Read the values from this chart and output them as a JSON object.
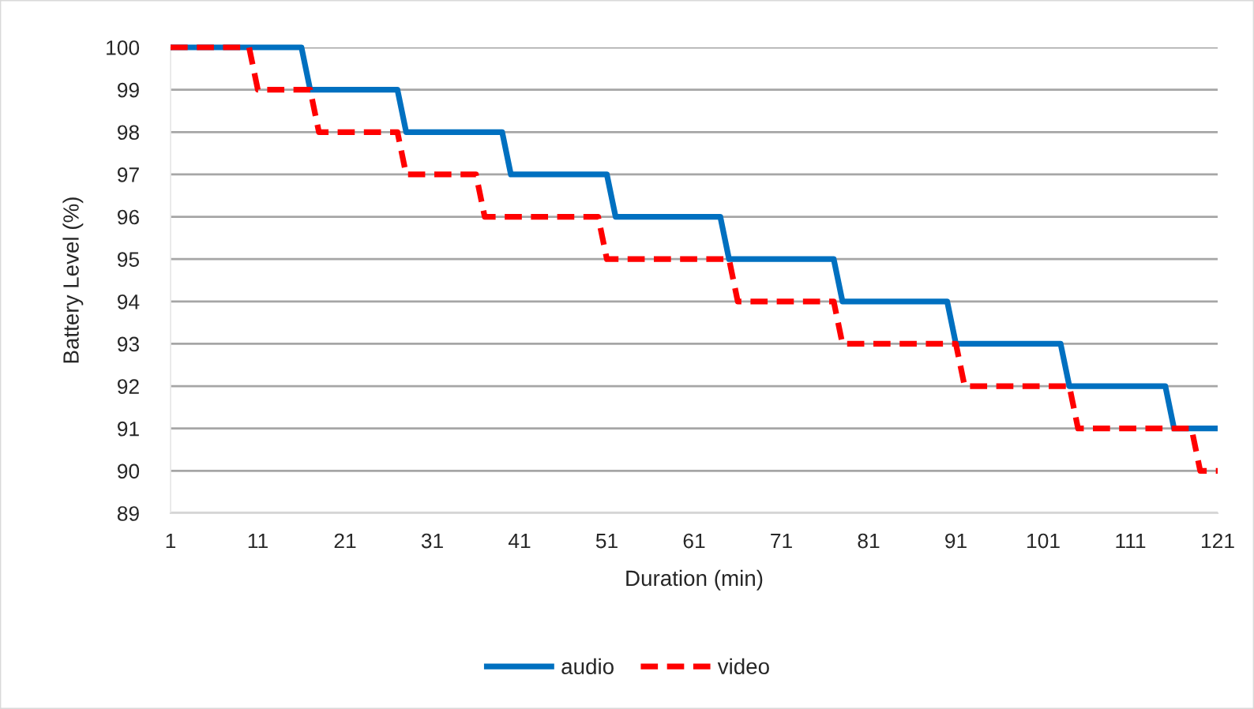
{
  "chart_data": {
    "type": "line",
    "xlabel": "Duration (min)",
    "ylabel": "Battery Level (%)",
    "xlim": [
      1,
      121
    ],
    "xticks": [
      1,
      11,
      21,
      31,
      41,
      51,
      61,
      71,
      81,
      91,
      101,
      111,
      121
    ],
    "ylim": [
      89,
      100
    ],
    "yticks": [
      89,
      90,
      91,
      92,
      93,
      94,
      95,
      96,
      97,
      98,
      99,
      100
    ],
    "grid": "y",
    "legend": "bottom",
    "series": [
      {
        "name": "audio",
        "color": "#0070c0",
        "line_style": "solid",
        "x": [
          1,
          16,
          17,
          27,
          28,
          39,
          40,
          51,
          52,
          64,
          65,
          77,
          78,
          90,
          91,
          103,
          104,
          115,
          116,
          121
        ],
        "values": [
          100,
          100,
          99,
          99,
          98,
          98,
          97,
          97,
          96,
          96,
          95,
          95,
          94,
          94,
          93,
          93,
          92,
          92,
          91,
          91
        ]
      },
      {
        "name": "video",
        "color": "#ff0000",
        "line_style": "dashed",
        "x": [
          1,
          10,
          11,
          17,
          18,
          27,
          28,
          36,
          37,
          50,
          51,
          65,
          66,
          77,
          78,
          91,
          92,
          104,
          105,
          118,
          119,
          121
        ],
        "values": [
          100,
          100,
          99,
          99,
          98,
          98,
          97,
          97,
          96,
          96,
          95,
          95,
          94,
          94,
          93,
          93,
          92,
          92,
          91,
          91,
          90,
          90
        ]
      }
    ]
  }
}
